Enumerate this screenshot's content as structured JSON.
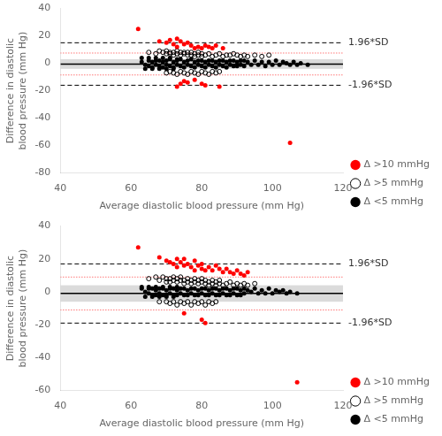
{
  "chart_data": [
    {
      "type": "scatter",
      "xlabel": "Average diastolic blood pressure (mm Hg)",
      "ylabel": "Difference in diastolic\nblood pressure (mm Hg)",
      "xlim": [
        40,
        120
      ],
      "xticks": [
        40,
        60,
        80,
        100,
        120
      ],
      "ylim": [
        -80,
        40
      ],
      "yticks": [
        -80,
        -60,
        -40,
        -20,
        0,
        20,
        40
      ],
      "grid": false,
      "legend": "right",
      "series": [
        {
          "name": "Δ >10 mmHg",
          "color": "red",
          "marker": "circle",
          "x": [
            62,
            68,
            70,
            71,
            72,
            73,
            73,
            74,
            75,
            76,
            77,
            78,
            79,
            80,
            81,
            82,
            83,
            84,
            86,
            73,
            74,
            75,
            76,
            78,
            80,
            81,
            85,
            105
          ],
          "values": [
            25,
            16,
            15,
            17,
            14,
            18,
            12,
            16,
            14,
            15,
            13,
            11,
            12,
            11,
            13,
            12,
            11,
            13,
            11,
            -17,
            -15,
            -13,
            -14,
            -12,
            -15,
            -16,
            -17,
            -58
          ]
        },
        {
          "name": "Δ >5 mmHg",
          "color": "black",
          "marker": "open_circle",
          "x": [
            65,
            67,
            68,
            69,
            70,
            70,
            71,
            71,
            72,
            72,
            73,
            73,
            74,
            74,
            75,
            75,
            76,
            76,
            77,
            77,
            78,
            78,
            79,
            79,
            80,
            80,
            81,
            82,
            83,
            84,
            85,
            86,
            87,
            88,
            89,
            90,
            91,
            92,
            93,
            95,
            97,
            99,
            70,
            71,
            72,
            73,
            74,
            75,
            76,
            77,
            78,
            79,
            80,
            81,
            82,
            83,
            84,
            85
          ],
          "values": [
            8,
            7,
            9,
            8,
            7,
            9,
            7,
            8,
            6,
            8,
            7,
            9,
            6,
            8,
            7,
            8,
            6,
            8,
            6,
            8,
            7,
            5,
            6,
            8,
            7,
            5,
            6,
            7,
            5,
            6,
            7,
            5,
            6,
            6,
            7,
            6,
            5,
            6,
            5,
            6,
            5,
            6,
            -7,
            -6,
            -7,
            -8,
            -6,
            -7,
            -8,
            -6,
            -7,
            -8,
            -6,
            -7,
            -8,
            -6,
            -7,
            -6
          ]
        },
        {
          "name": "Δ <5 mmHg",
          "color": "black",
          "marker": "circle",
          "x": [
            63,
            64,
            65,
            65,
            66,
            66,
            67,
            67,
            68,
            68,
            69,
            69,
            70,
            70,
            71,
            71,
            72,
            72,
            73,
            73,
            74,
            74,
            75,
            75,
            76,
            76,
            77,
            77,
            78,
            78,
            79,
            79,
            80,
            80,
            81,
            81,
            82,
            82,
            83,
            83,
            84,
            84,
            85,
            85,
            86,
            86,
            87,
            87,
            88,
            88,
            89,
            89,
            90,
            90,
            91,
            91,
            92,
            92,
            93,
            94,
            95,
            96,
            97,
            98,
            99,
            100,
            101,
            102,
            103,
            104,
            105,
            106,
            107,
            108,
            110,
            63,
            64,
            65,
            66,
            67,
            68,
            69,
            70,
            71,
            72,
            73
          ],
          "values": [
            1,
            -1,
            2,
            -2,
            1,
            -3,
            2,
            -1,
            2,
            -2,
            1,
            -3,
            2,
            -1,
            3,
            -2,
            1,
            -3,
            2,
            -1,
            3,
            -2,
            1,
            -3,
            2,
            -1,
            3,
            -2,
            1,
            -3,
            2,
            -1,
            2,
            -2,
            1,
            -3,
            2,
            -1,
            2,
            -2,
            1,
            -3,
            2,
            -1,
            2,
            -2,
            1,
            -3,
            2,
            -1,
            2,
            -2,
            1,
            -2,
            2,
            -1,
            2,
            -2,
            1,
            -1,
            2,
            -1,
            1,
            -2,
            1,
            -1,
            2,
            -1,
            1,
            0,
            -1,
            1,
            -1,
            0,
            -1,
            4,
            -4,
            4,
            -4,
            4,
            -4,
            4,
            -4,
            4,
            -4,
            3
          ]
        }
      ],
      "band": {
        "lower": -4.0,
        "upper": 3.0,
        "color": "#999999"
      },
      "lines": [
        {
          "y": -0.5,
          "color": "#000000",
          "line_style": "solid"
        },
        {
          "y": 15.0,
          "color": "#000000",
          "line_style": "dashed"
        },
        {
          "y": -16.0,
          "color": "#000000",
          "line_style": "dashed"
        },
        {
          "y": 7.5,
          "color": "#ff3333",
          "line_style": "dotted"
        },
        {
          "y": -8.5,
          "color": "#ff3333",
          "line_style": "dotted"
        }
      ],
      "annotations": [
        {
          "text": "1.96*SD",
          "y": 15.0
        },
        {
          "text": "-1.96*SD",
          "y": -16.0
        }
      ]
    },
    {
      "type": "scatter",
      "xlabel": "Average diastolic blood pressure (mm Hg)",
      "ylabel": "Difference in diastolic\nblood pressure (mm Hg)",
      "xlim": [
        40,
        120
      ],
      "xticks": [
        40,
        60,
        80,
        100,
        120
      ],
      "ylim": [
        -60,
        40
      ],
      "yticks": [
        -60,
        -40,
        -20,
        0,
        20,
        40
      ],
      "grid": false,
      "legend": "right",
      "series": [
        {
          "name": "Δ >10 mmHg",
          "color": "red",
          "marker": "circle",
          "x": [
            62,
            68,
            70,
            71,
            72,
            73,
            73,
            74,
            75,
            75,
            76,
            77,
            78,
            78,
            79,
            80,
            80,
            81,
            82,
            83,
            84,
            85,
            86,
            87,
            88,
            89,
            90,
            91,
            92,
            93,
            75,
            80,
            81,
            107
          ],
          "values": [
            27,
            21,
            19,
            18,
            17,
            20,
            15,
            18,
            16,
            20,
            17,
            15,
            19,
            13,
            16,
            14,
            17,
            13,
            15,
            13,
            16,
            14,
            12,
            14,
            12,
            11,
            13,
            11,
            10,
            12,
            -13,
            -17,
            -19,
            -55
          ]
        },
        {
          "name": "Δ >5 mmHg",
          "color": "black",
          "marker": "open_circle",
          "x": [
            65,
            67,
            68,
            69,
            70,
            70,
            71,
            71,
            72,
            72,
            73,
            73,
            74,
            74,
            75,
            75,
            76,
            76,
            77,
            77,
            78,
            78,
            79,
            79,
            80,
            80,
            81,
            81,
            82,
            82,
            83,
            83,
            84,
            84,
            85,
            85,
            86,
            87,
            88,
            89,
            90,
            91,
            92,
            93,
            95,
            68,
            70,
            71,
            72,
            73,
            74,
            75,
            76,
            77,
            78,
            79,
            80,
            81,
            82,
            83,
            84
          ],
          "values": [
            8,
            9,
            7,
            9,
            8,
            6,
            8,
            6,
            7,
            9,
            6,
            8,
            7,
            9,
            5,
            7,
            6,
            8,
            5,
            7,
            6,
            8,
            5,
            7,
            6,
            8,
            5,
            7,
            4,
            6,
            5,
            7,
            4,
            6,
            5,
            7,
            4,
            5,
            6,
            4,
            5,
            4,
            5,
            4,
            5,
            -6,
            -6,
            -7,
            -6,
            -8,
            -6,
            -7,
            -6,
            -8,
            -6,
            -7,
            -6,
            -8,
            -6,
            -7,
            -6
          ]
        },
        {
          "name": "Δ <5 mmHg",
          "color": "black",
          "marker": "circle",
          "x": [
            63,
            64,
            65,
            65,
            66,
            66,
            67,
            67,
            68,
            68,
            69,
            69,
            70,
            70,
            71,
            71,
            72,
            72,
            73,
            73,
            74,
            74,
            75,
            75,
            76,
            76,
            77,
            77,
            78,
            78,
            79,
            79,
            80,
            80,
            81,
            81,
            82,
            82,
            83,
            83,
            84,
            84,
            85,
            85,
            86,
            86,
            87,
            87,
            88,
            88,
            89,
            89,
            90,
            90,
            91,
            91,
            92,
            92,
            93,
            94,
            95,
            96,
            97,
            98,
            99,
            100,
            101,
            102,
            103,
            104,
            105,
            107,
            63,
            64,
            65,
            66,
            67,
            68,
            69,
            70,
            71,
            72,
            73
          ],
          "values": [
            2,
            0,
            2,
            -1,
            2,
            -2,
            1,
            -2,
            2,
            -1,
            2,
            -2,
            1,
            -2,
            2,
            -1,
            2,
            -2,
            1,
            -2,
            2,
            -1,
            2,
            -2,
            1,
            -2,
            2,
            -1,
            2,
            -2,
            1,
            -2,
            2,
            -1,
            2,
            -2,
            1,
            -2,
            2,
            -1,
            2,
            -2,
            1,
            -2,
            2,
            -1,
            2,
            -2,
            1,
            -2,
            2,
            -1,
            2,
            -2,
            1,
            -2,
            2,
            -1,
            1,
            0,
            2,
            -1,
            1,
            -1,
            2,
            -1,
            1,
            0,
            1,
            -1,
            0,
            -1,
            3,
            -3,
            3,
            -3,
            3,
            -3,
            3,
            -3,
            3,
            -3,
            3
          ]
        }
      ],
      "band": {
        "lower": -6.0,
        "upper": 4.0,
        "color": "#999999"
      },
      "lines": [
        {
          "y": -1.0,
          "color": "#000000",
          "line_style": "solid"
        },
        {
          "y": 17.0,
          "color": "#000000",
          "line_style": "dashed"
        },
        {
          "y": -19.0,
          "color": "#000000",
          "line_style": "dashed"
        },
        {
          "y": 9.0,
          "color": "#ff3333",
          "line_style": "dotted"
        },
        {
          "y": -11.0,
          "color": "#ff3333",
          "line_style": "dotted"
        }
      ],
      "annotations": [
        {
          "text": "1.96*SD",
          "y": 17.0
        },
        {
          "text": "-1.96*SD",
          "y": -19.0
        }
      ]
    }
  ]
}
